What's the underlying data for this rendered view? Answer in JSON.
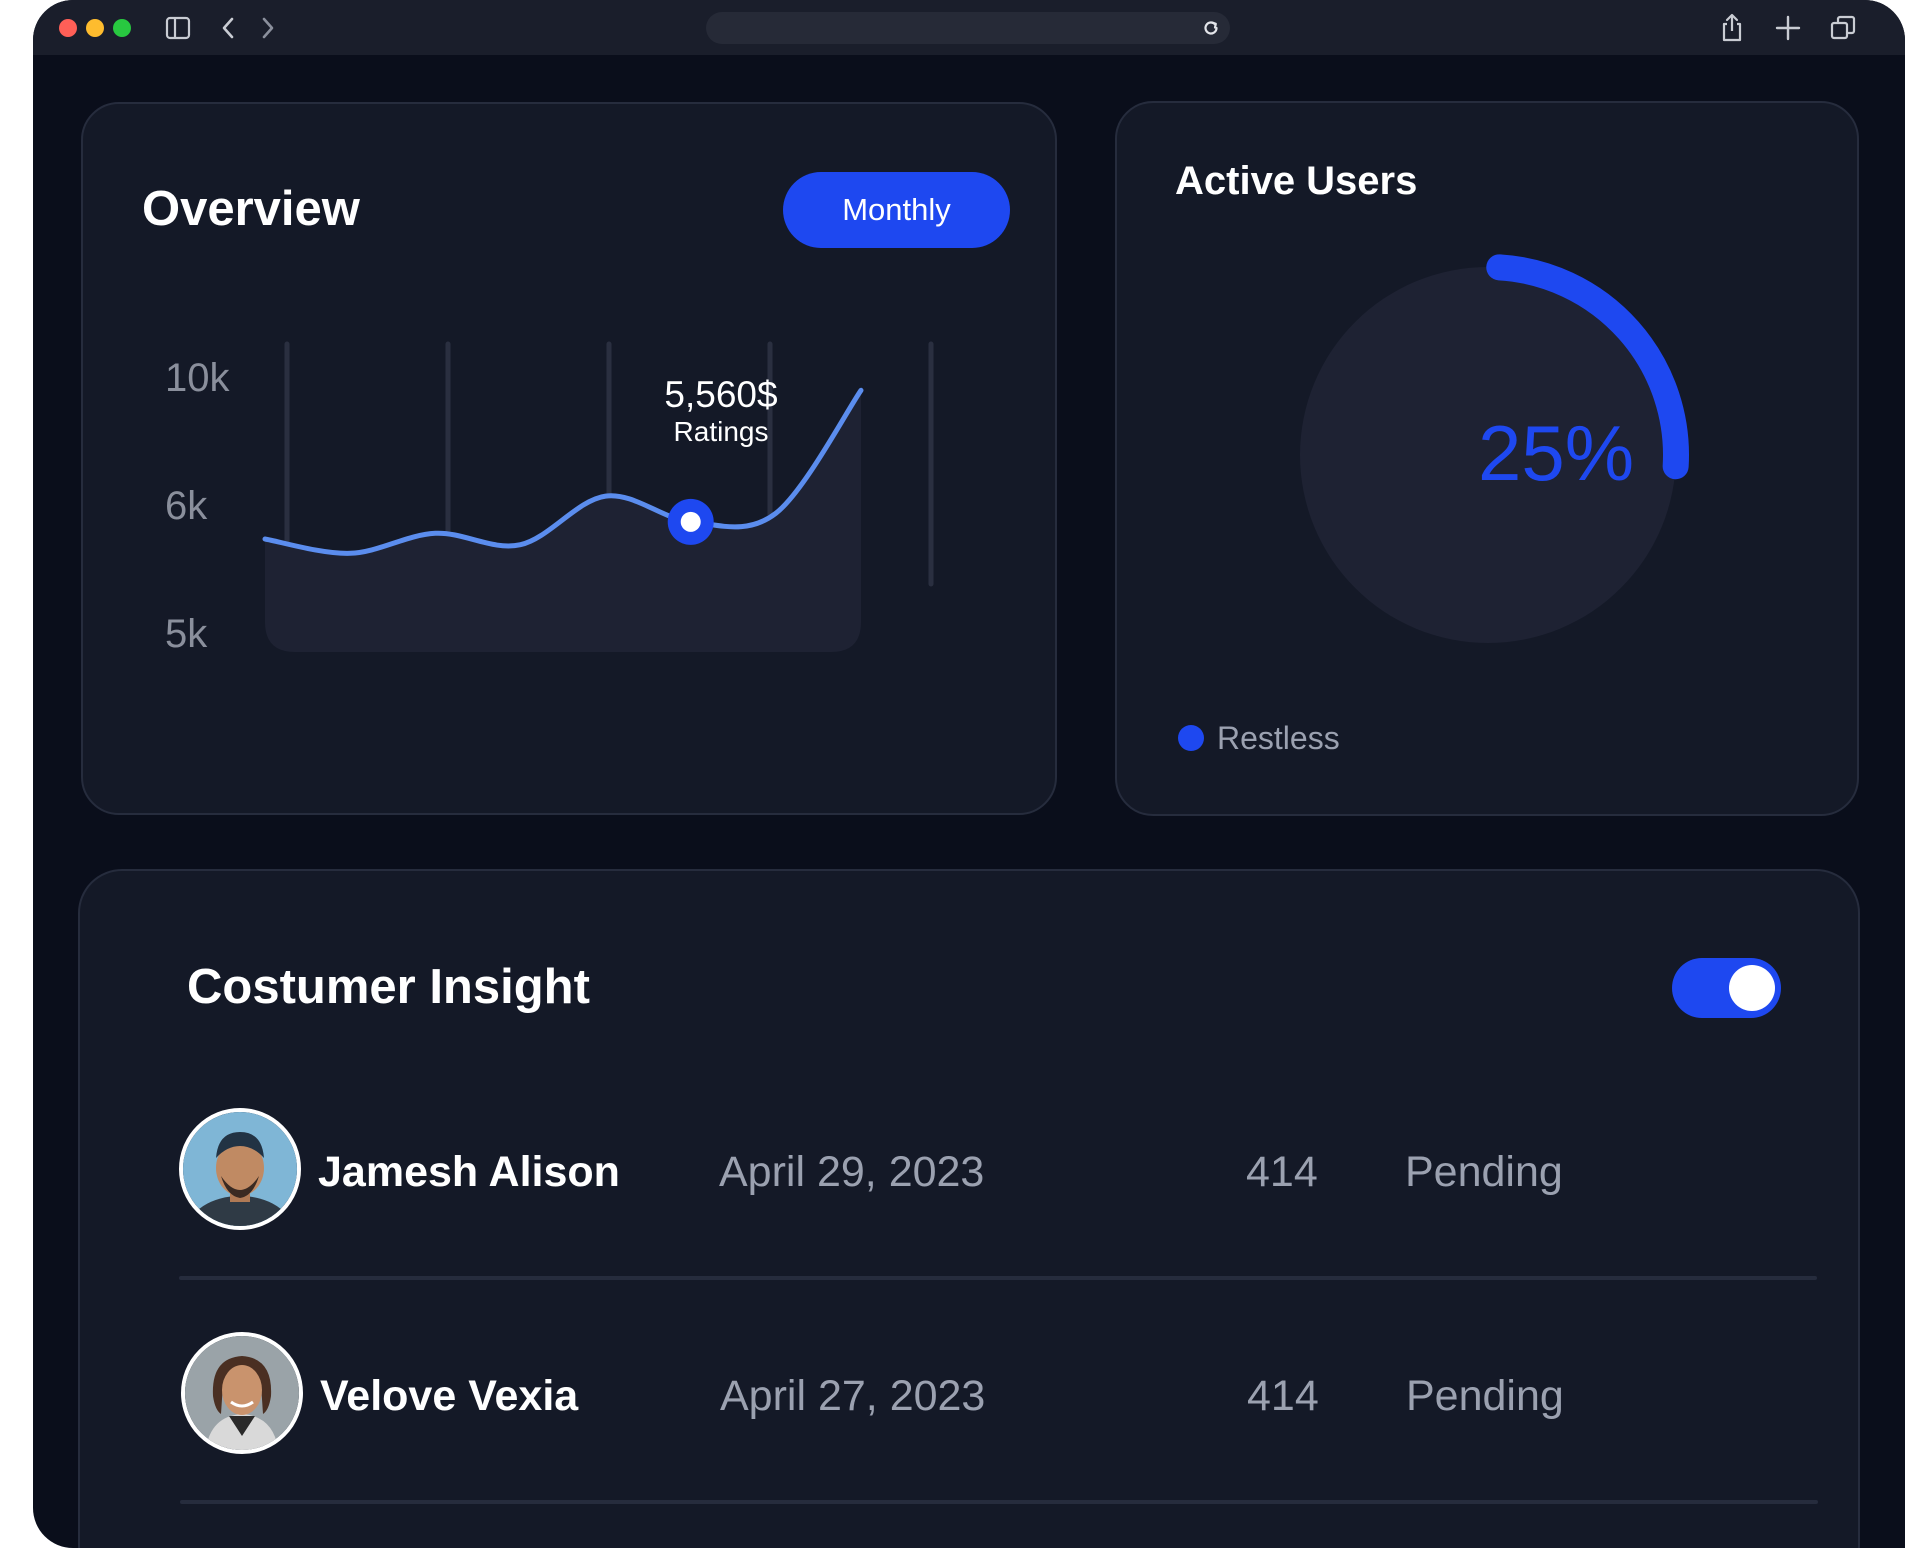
{
  "browser": {
    "icons": {
      "sidebar": "sidebar-icon",
      "back": "chevron-left-icon",
      "forward": "chevron-right-icon",
      "reload": "reload-icon",
      "share": "share-icon",
      "new_tab": "plus-icon",
      "tabs": "tabs-icon"
    },
    "traffic_lights": [
      "#ff5f57",
      "#febc2e",
      "#28c840"
    ]
  },
  "overview": {
    "title": "Overview",
    "period_button": "Monthly",
    "tooltip": {
      "value": "5,560$",
      "label": "Ratings"
    },
    "y_ticks": [
      "10k",
      "6k",
      "5k"
    ]
  },
  "chart_data": {
    "type": "line",
    "title": "Overview",
    "y_ticks": [
      "10k",
      "6k",
      "5k"
    ],
    "series": [
      {
        "values": [
          5.0,
          4.5,
          5.2,
          4.8,
          6.5,
          5.6,
          5.9,
          10.2
        ]
      }
    ],
    "highlight": {
      "value": "5,560$",
      "label": "Ratings"
    },
    "grid": "vertical",
    "accent": "#5b8dee"
  },
  "active_users": {
    "title": "Active Users",
    "percent_label": "25%",
    "percent_value": 25,
    "legend": "Restless",
    "accent": "#1e48f0"
  },
  "insight": {
    "title": "Costumer Insight",
    "toggle_on": true,
    "rows": [
      {
        "name": "Jamesh Alison",
        "date": "April 29, 2023",
        "count": "414",
        "status": "Pending"
      },
      {
        "name": "Velove Vexia",
        "date": "April 27, 2023",
        "count": "414",
        "status": "Pending"
      }
    ]
  }
}
